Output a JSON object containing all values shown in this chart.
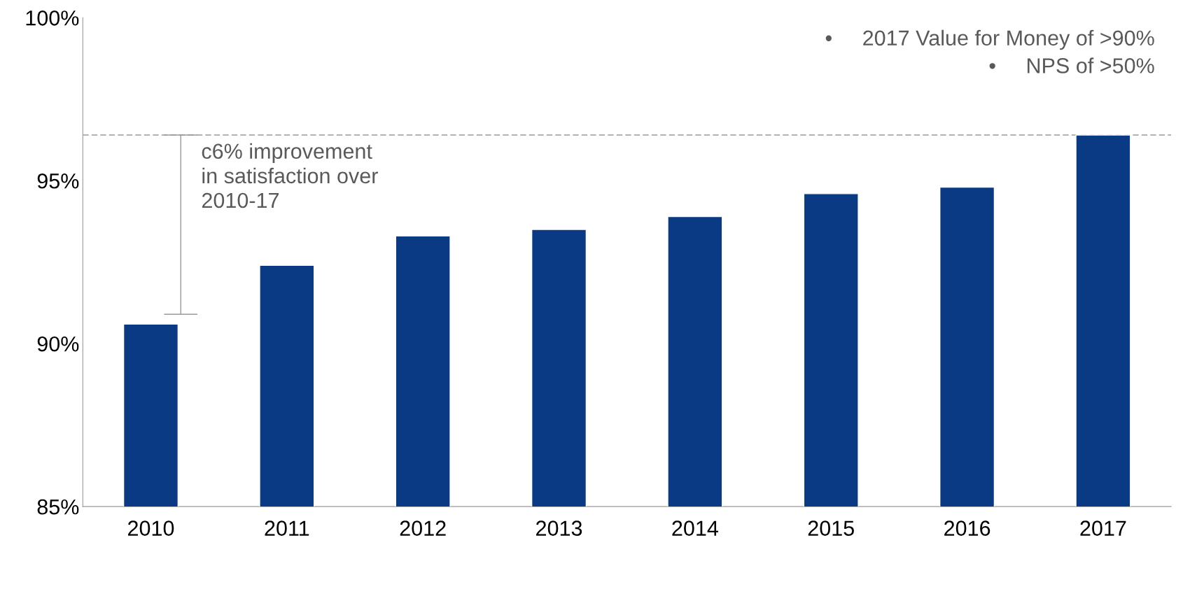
{
  "chart_data": {
    "type": "bar",
    "categories": [
      "2010",
      "2011",
      "2012",
      "2013",
      "2014",
      "2015",
      "2016",
      "2017"
    ],
    "values": [
      90.6,
      92.4,
      93.3,
      93.5,
      93.9,
      94.6,
      94.8,
      96.4
    ],
    "color": "#0a3a84",
    "ylim": [
      85,
      100
    ],
    "yticks": [
      {
        "value": 85,
        "label": "85%"
      },
      {
        "value": 90,
        "label": "90%"
      },
      {
        "value": 95,
        "label": "95%"
      },
      {
        "value": 100,
        "label": "100%"
      }
    ],
    "grid": false,
    "ref_lines": [
      {
        "axis": "y",
        "value": 96.4,
        "line_style": "dashed",
        "color": "#999999"
      }
    ],
    "annotations": [
      {
        "text": "c6% improvement\nin satisfaction over\n2010-17",
        "x": "2010",
        "y": 96.4
      },
      "•     2017 Value for Money of >90%\n•     NPS of >50%"
    ]
  }
}
